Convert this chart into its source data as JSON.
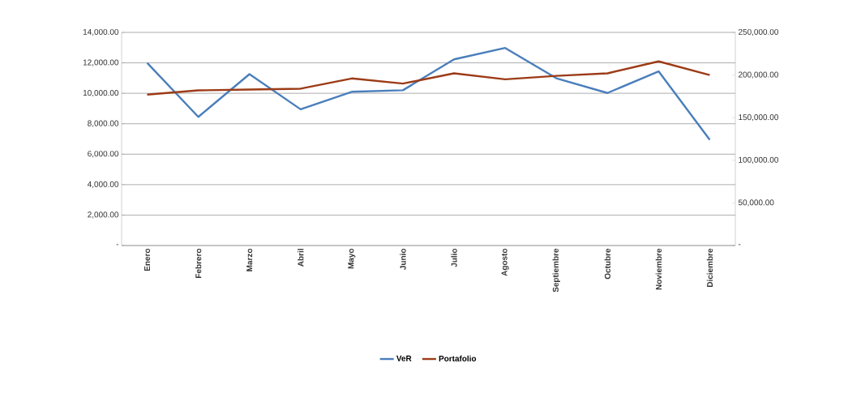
{
  "chart_data": {
    "type": "line",
    "categories": [
      "Enero",
      "Febrero",
      "Marzo",
      "Abril",
      "Mayo",
      "Junio",
      "Julio",
      "Agosto",
      "Septiembre",
      "Octubre",
      "Noviembre",
      "Diciembre"
    ],
    "series": [
      {
        "name": "VeR",
        "color": "#4a7ebb",
        "values": [
          12000,
          8450,
          11260,
          8950,
          10100,
          10200,
          12230,
          12980,
          10990,
          10020,
          11440,
          6950
        ]
      },
      {
        "name": "Portafolio",
        "color": "#9c3b17",
        "axis": "y2",
        "values": [
          177000,
          182000,
          183000,
          184000,
          196000,
          190000,
          202000,
          195000,
          199000,
          202000,
          216000,
          200000
        ]
      }
    ],
    "ylim": [
      0,
      14000
    ],
    "yticks": [
      {
        "value": 0,
        "label": "-"
      },
      {
        "value": 2000,
        "label": "2,000.00"
      },
      {
        "value": 4000,
        "label": "4,000.00"
      },
      {
        "value": 6000,
        "label": "6,000.00"
      },
      {
        "value": 8000,
        "label": "8,000.00"
      },
      {
        "value": 10000,
        "label": "10,000.00"
      },
      {
        "value": 12000,
        "label": "12,000.00"
      },
      {
        "value": 14000,
        "label": "14,000.00"
      }
    ],
    "y2lim": [
      0,
      250000
    ],
    "y2ticks": [
      {
        "value": 0,
        "label": "-"
      },
      {
        "value": 50000,
        "label": "50,000.00"
      },
      {
        "value": 100000,
        "label": "100,000.00"
      },
      {
        "value": 150000,
        "label": "150,000.00"
      },
      {
        "value": 200000,
        "label": "200,000.00"
      },
      {
        "value": 250000,
        "label": "250,000.00"
      }
    ],
    "grid": "y",
    "legend": "bottom",
    "marker": "none",
    "line_style": "solid"
  }
}
